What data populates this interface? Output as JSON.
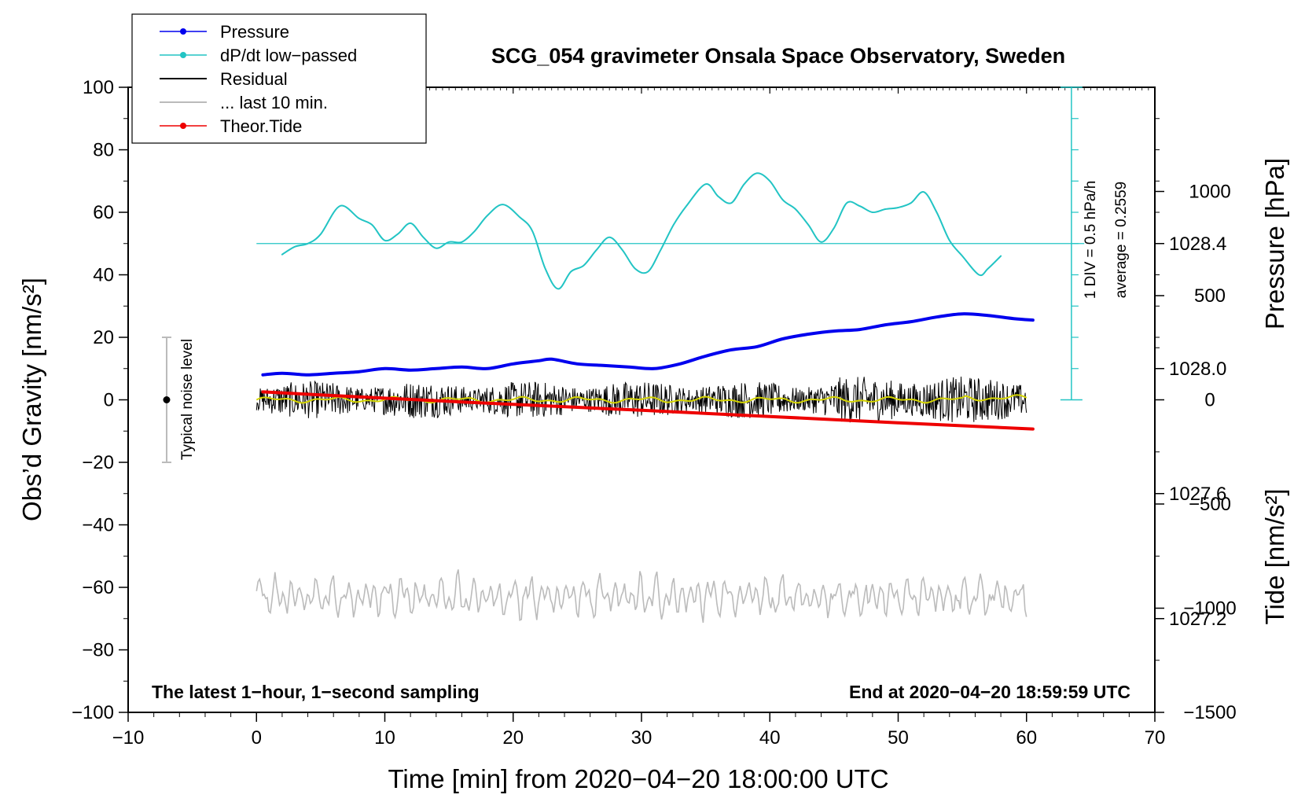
{
  "chart_data": {
    "type": "line",
    "title": "SCG_054 gravimeter Onsala Space Observatory, Sweden",
    "xlabel": "Time [min] from 2020−04−20 18:00:00 UTC",
    "ylabel_left": "Obs’d Gravity [nm/s²]",
    "ylabel_pressure": "Pressure [hPa]",
    "ylabel_tide": "Tide [nm/s²]",
    "xlim": [
      -10,
      70
    ],
    "ylim": [
      -100,
      100
    ],
    "pressure_lim": [
      1026.9,
      1028.9
    ],
    "tide_lim": [
      -1500,
      1500
    ],
    "x_ticks": [
      -10,
      0,
      10,
      20,
      30,
      40,
      50,
      60,
      70
    ],
    "x_tick_labels": [
      "−10",
      "0",
      "10",
      "20",
      "30",
      "40",
      "50",
      "60",
      "70"
    ],
    "y_ticks": [
      -100,
      -80,
      -60,
      -40,
      -20,
      0,
      20,
      40,
      60,
      80,
      100
    ],
    "y_tick_labels": [
      "−100",
      "−80",
      "−60",
      "−40",
      "−20",
      "0",
      "20",
      "40",
      "60",
      "80",
      "100"
    ],
    "pressure_ticks": [
      1027.2,
      1027.6,
      1028.0,
      1028.4
    ],
    "pressure_tick_labels": [
      "1027.2",
      "1027.6",
      "1028.0",
      "1028.4"
    ],
    "tide_ticks": [
      -1500,
      -1000,
      -500,
      0,
      500,
      1000
    ],
    "tide_tick_labels": [
      "−1500",
      "−1000",
      "−500",
      "0",
      "500",
      "1000"
    ],
    "note_left": "The latest 1−hour, 1−second sampling",
    "note_right": "End at 2020−04−20 18:59:59 UTC",
    "noise_label": "Typical noise level",
    "noise_bar": {
      "x": -7,
      "center": 0,
      "half_range": 20
    },
    "div_label": "1 DIV = 0.5 hPa/h",
    "average_label": "average = 0.2559",
    "legend": [
      {
        "name": "Pressure",
        "color": "#0000ee",
        "marker": true
      },
      {
        "name": "dP/dt low−passed",
        "color": "#22c4c4",
        "marker": true
      },
      {
        "name": "Residual",
        "color": "#000000",
        "marker": false
      },
      {
        "name": "... last 10 min.",
        "color": "#bbbbbb",
        "marker": false
      },
      {
        "name": "Theor.Tide",
        "color": "#ee0000",
        "marker": true
      }
    ],
    "series": [
      {
        "name": "Pressure",
        "axis": "pressure",
        "color": "#0000ee",
        "x": [
          0.5,
          2,
          4,
          6,
          8,
          10,
          12,
          14,
          16,
          18,
          20,
          22,
          23,
          25,
          27,
          29,
          31,
          33,
          35,
          37,
          39,
          41,
          43,
          45,
          47,
          49,
          51,
          53,
          55,
          57,
          59,
          60.5
        ],
        "y": [
          1027.98,
          1027.985,
          1027.98,
          1027.985,
          1027.99,
          1028.0,
          1027.995,
          1028.0,
          1028.005,
          1028.0,
          1028.015,
          1028.025,
          1028.03,
          1028.015,
          1028.01,
          1028.005,
          1028.0,
          1028.015,
          1028.04,
          1028.06,
          1028.07,
          1028.095,
          1028.11,
          1028.12,
          1028.125,
          1028.14,
          1028.15,
          1028.165,
          1028.175,
          1028.17,
          1028.16,
          1028.155
        ]
      },
      {
        "name": "dP/dt low-passed",
        "axis": "left",
        "color": "#22c4c4",
        "x": [
          2,
          3,
          4,
          5,
          6.5,
          8,
          9,
          10,
          11,
          12,
          13,
          14,
          15,
          16,
          17,
          18,
          19.2,
          20.5,
          21.5,
          22.5,
          23.5,
          24.5,
          25.5,
          26.5,
          27.5,
          28.5,
          29.5,
          30.5,
          31.5,
          32.5,
          33.5,
          35,
          36,
          37,
          38,
          39,
          40,
          41,
          42,
          43,
          44,
          45,
          46,
          47,
          48,
          49,
          50,
          51,
          52,
          53,
          54,
          55,
          56.3,
          57,
          58
        ],
        "y": [
          46.5,
          49,
          50,
          53,
          62,
          58,
          56,
          51,
          53,
          56.5,
          52,
          48.5,
          50.5,
          50.5,
          54,
          59,
          62.5,
          58.5,
          54,
          42,
          35.5,
          41,
          43,
          48,
          52,
          48,
          42,
          41,
          48,
          56,
          62,
          69,
          65,
          63,
          69,
          72.5,
          70,
          64,
          61,
          56,
          50.5,
          55,
          63,
          62,
          60,
          61,
          61.5,
          63,
          66.5,
          60,
          51,
          46,
          40,
          42,
          46
        ]
      },
      {
        "name": "Theor.Tide",
        "axis": "tide",
        "color": "#ee0000",
        "x": [
          0.5,
          10,
          20,
          30,
          40,
          50,
          60.5
        ],
        "y": [
          38,
          8,
          -22,
          -50,
          -80,
          -110,
          -140
        ]
      }
    ],
    "lines": [
      {
        "name": "dP/dt zero line",
        "y": 50,
        "x_range": [
          0,
          64.5
        ],
        "color": "#22c4c4"
      },
      {
        "name": "Residual",
        "center": 0,
        "amplitude": "about ±8 nm/s²",
        "x_range": [
          0,
          60
        ],
        "color": "#000000"
      },
      {
        "name": "... last 10 min.",
        "center": -63,
        "amplitude": "about ±8 nm/s²",
        "x_range": [
          0,
          60
        ],
        "color": "#bbbbbb"
      }
    ]
  }
}
